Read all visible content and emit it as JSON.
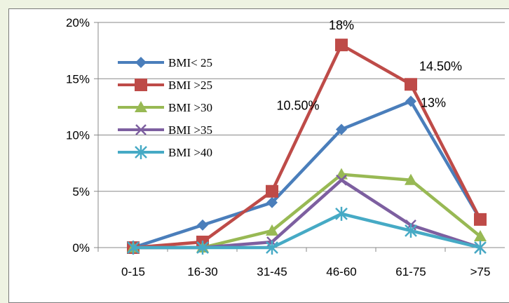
{
  "chart_data": {
    "type": "line",
    "title": "",
    "xlabel": "",
    "ylabel": "",
    "categories": [
      "0-15",
      "16-30",
      "31-45",
      "46-60",
      "61-75",
      ">75"
    ],
    "ylim": [
      0,
      20
    ],
    "yticks": [
      "0%",
      "5%",
      "10%",
      "15%",
      "20%"
    ],
    "grid": "horizontal",
    "legend_position": "top-left",
    "series": [
      {
        "name": "BMI< 25",
        "color": "#4a7ebb",
        "marker": "diamond",
        "values": [
          0,
          2,
          4,
          10.5,
          13,
          2.5
        ]
      },
      {
        "name": "BMI >25",
        "color": "#be4b48",
        "marker": "square",
        "values": [
          0,
          0.5,
          5,
          18,
          14.5,
          2.5
        ]
      },
      {
        "name": "BMI >30",
        "color": "#98b954",
        "marker": "triangle",
        "values": [
          0,
          0,
          1.5,
          6.5,
          6,
          1
        ]
      },
      {
        "name": "BMI >35",
        "color": "#7d5fa0",
        "marker": "x",
        "values": [
          0,
          0,
          0.5,
          6,
          2,
          0
        ]
      },
      {
        "name": "BMI >40",
        "color": "#46aac5",
        "marker": "star",
        "values": [
          0,
          0,
          0,
          3,
          1.5,
          0
        ]
      }
    ],
    "annotations": [
      {
        "text": "18%",
        "series": 1,
        "index": 3
      },
      {
        "text": "14.50%",
        "series": 1,
        "index": 4
      },
      {
        "text": "10.50%",
        "series": 0,
        "index": 3
      },
      {
        "text": "13%",
        "series": 0,
        "index": 4
      }
    ]
  }
}
